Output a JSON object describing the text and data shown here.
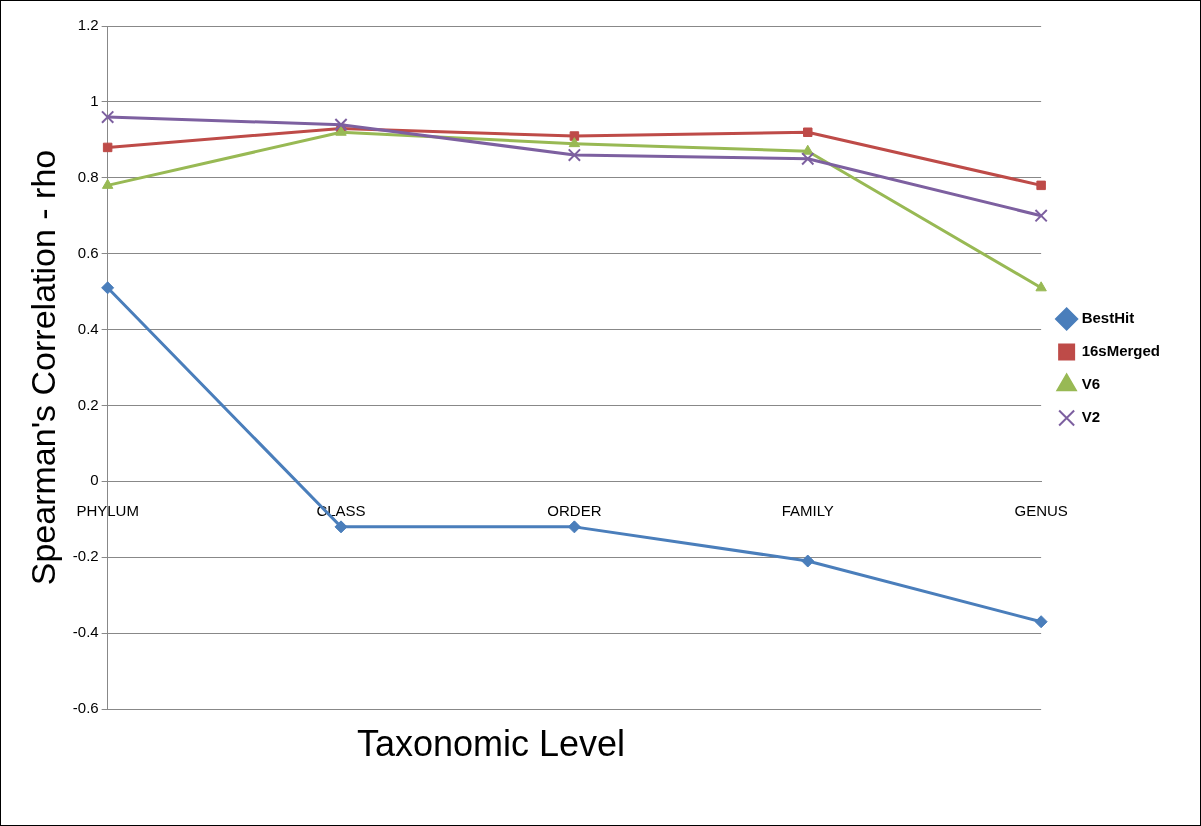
{
  "chart_data": {
    "type": "line",
    "xlabel": "Taxonomic Level",
    "ylabel": "Spearman's Correlation - rho",
    "categories": [
      "PHYLUM",
      "CLASS",
      "ORDER",
      "FAMILY",
      "GENUS"
    ],
    "series": [
      {
        "name": "BestHit",
        "color": "#4a7ebb",
        "marker": "diamond",
        "values": [
          0.51,
          -0.12,
          -0.12,
          -0.21,
          -0.37
        ]
      },
      {
        "name": "16sMerged",
        "color": "#be4b48",
        "marker": "square",
        "values": [
          0.88,
          0.93,
          0.91,
          0.92,
          0.78
        ]
      },
      {
        "name": "V6",
        "color": "#98b954",
        "marker": "triangle",
        "values": [
          0.78,
          0.92,
          0.89,
          0.87,
          0.51
        ]
      },
      {
        "name": "V2",
        "color": "#7d60a0",
        "marker": "cross",
        "values": [
          0.96,
          0.94,
          0.86,
          0.85,
          0.7
        ]
      }
    ],
    "ylim": [
      -0.6,
      1.2
    ],
    "yticks": [
      -0.6,
      -0.4,
      -0.2,
      0,
      0.2,
      0.4,
      0.6,
      0.8,
      1,
      1.2
    ],
    "grid": "y",
    "legend": "right"
  }
}
